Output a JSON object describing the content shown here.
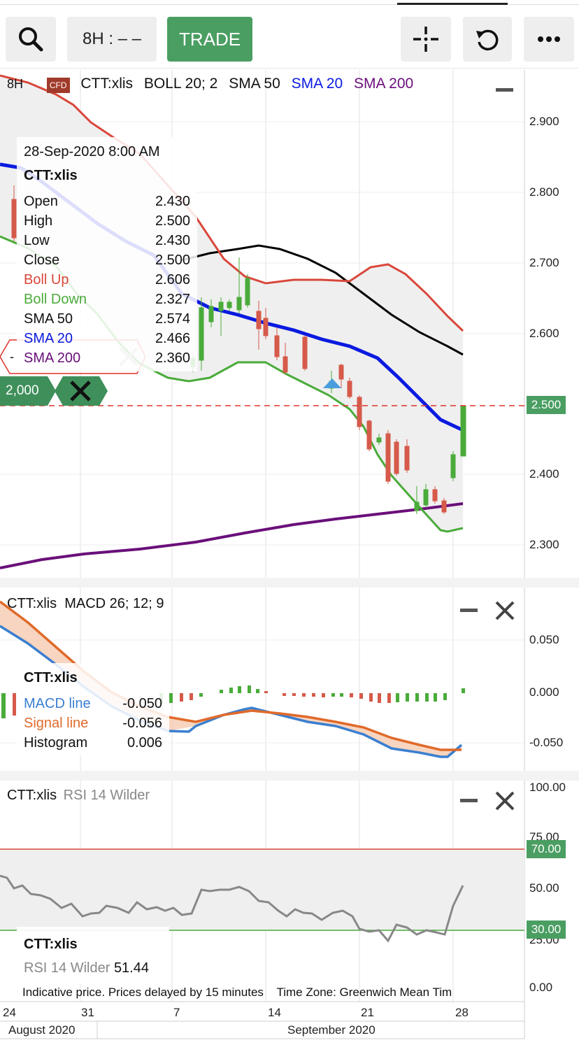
{
  "toolbar": {
    "timeframe_label": "8H : – –",
    "trade_label": "TRADE"
  },
  "main_chart": {
    "legend": {
      "interval": "8H",
      "badge": "CFD",
      "symbol": "CTT:xlis",
      "boll": "BOLL 20; 2",
      "sma50": "SMA 50",
      "sma20": "SMA 20",
      "sma200": "SMA 200"
    },
    "y_ticks": [
      "2.900",
      "2.800",
      "2.700",
      "2.600",
      "2.400",
      "2.300"
    ],
    "price_tag": "2.500",
    "order_qty": "2,000",
    "order_price_partial": "-",
    "colors": {
      "boll": "#d9473a",
      "boll_down": "#4aab3a",
      "sma50": "#000000",
      "sma20": "#0a1ae0",
      "sma200": "#6a0f7a",
      "up": "#4aab3a",
      "down": "#d65a4a"
    }
  },
  "tooltip": {
    "date": "28-Sep-2020 8:00 AM",
    "symbol": "CTT:xlis",
    "rows": [
      {
        "label": "Open",
        "value": "2.430"
      },
      {
        "label": "High",
        "value": "2.500"
      },
      {
        "label": "Low",
        "value": "2.430"
      },
      {
        "label": "Close",
        "value": "2.500"
      },
      {
        "label": "Boll Up",
        "value": "2.606"
      },
      {
        "label": "Boll Down",
        "value": "2.327"
      },
      {
        "label": "SMA 50",
        "value": "2.574"
      },
      {
        "label": "SMA 20",
        "value": "2.466"
      },
      {
        "label": "SMA 200",
        "value": "2.360"
      }
    ]
  },
  "macd_panel": {
    "title": "CTT:xlis  MACD 26; 12; 9",
    "y_ticks": [
      "0.050",
      "0.000",
      "-0.050"
    ],
    "tooltip_symbol": "CTT:xlis",
    "rows": [
      {
        "label": "MACD line",
        "value": "-0.050"
      },
      {
        "label": "Signal line",
        "value": "-0.056"
      },
      {
        "label": "Histogram",
        "value": "0.006"
      }
    ]
  },
  "rsi_panel": {
    "symbol": "CTT:xlis",
    "indicator": "RSI 14 Wilder",
    "y_ticks": [
      "100.00",
      "75.00",
      "50.00",
      "25.00",
      "0.00"
    ],
    "upper_tag": "70.00",
    "lower_tag": "30.00",
    "tooltip_symbol": "CTT:xlis",
    "tooltip_label": "RSI 14 Wilder",
    "tooltip_value": "51.44",
    "footer": "Indicative price. Prices delayed by 15 minutes    Time Zone: Greenwich Mean Tim"
  },
  "x_axis": {
    "days": [
      "24",
      "31",
      "7",
      "14",
      "21",
      "28"
    ],
    "months": [
      "August 2020",
      "September 2020"
    ]
  }
}
